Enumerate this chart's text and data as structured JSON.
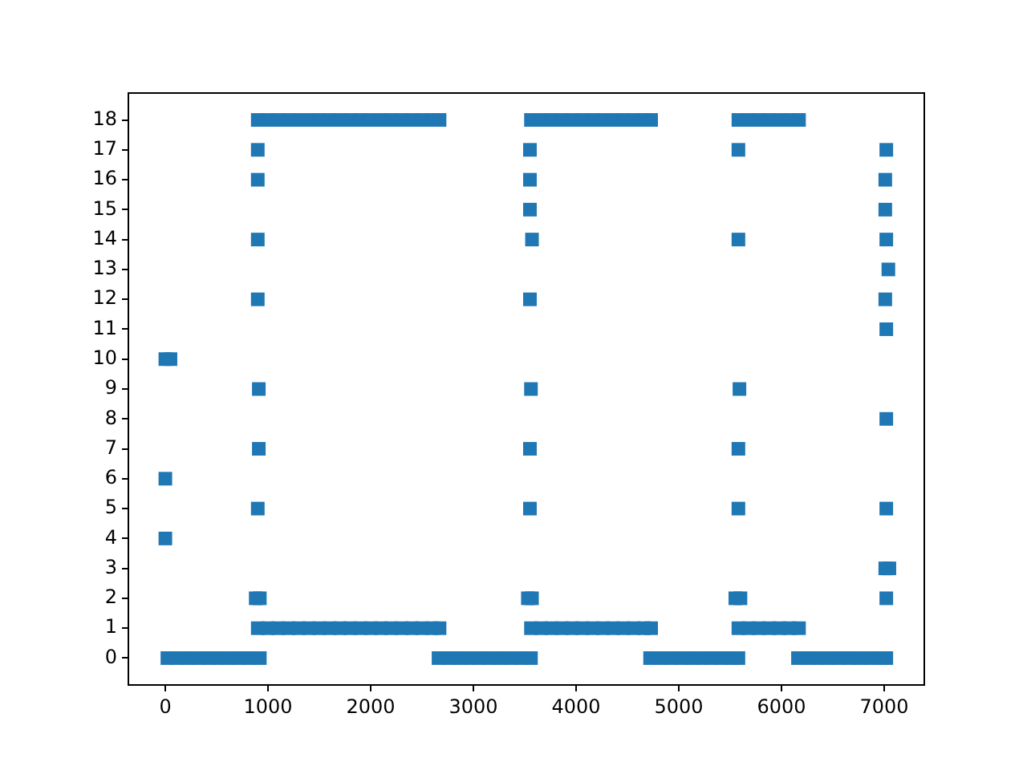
{
  "chart_data": {
    "type": "scatter",
    "color": "#1f77b4",
    "marker": "square",
    "grid": false,
    "x": [
      20,
      120,
      220,
      320,
      420,
      520,
      620,
      720,
      820,
      920,
      2660,
      2760,
      2860,
      2960,
      3060,
      3160,
      3260,
      3360,
      3460,
      3560,
      4720,
      4820,
      4920,
      5020,
      5120,
      5220,
      5320,
      5420,
      5520,
      5580,
      6160,
      6260,
      6360,
      6460,
      6560,
      6660,
      6760,
      6860,
      6960,
      7020,
      900,
      1000,
      1100,
      1200,
      1300,
      1400,
      1500,
      1600,
      1700,
      1800,
      1900,
      2000,
      2100,
      2200,
      2300,
      2400,
      2500,
      2600,
      2670,
      3560,
      3660,
      3760,
      3860,
      3960,
      4060,
      4160,
      4260,
      4360,
      4460,
      4560,
      4660,
      4730,
      5580,
      5680,
      5780,
      5880,
      5980,
      6080,
      6170,
      900,
      1000,
      1100,
      1200,
      1300,
      1400,
      1500,
      1600,
      1700,
      1800,
      1900,
      2000,
      2100,
      2200,
      2300,
      2400,
      2500,
      2600,
      2670,
      3560,
      3660,
      3760,
      3860,
      3960,
      4060,
      4160,
      4260,
      4360,
      4460,
      4560,
      4660,
      4730,
      5580,
      5680,
      5780,
      5880,
      5980,
      6080,
      6170,
      0,
      0,
      0,
      50,
      880,
      920,
      900,
      910,
      910,
      900,
      900,
      900,
      900,
      3530,
      3570,
      3550,
      3550,
      3560,
      3550,
      3570,
      3550,
      3550,
      3550,
      5550,
      5600,
      5580,
      5580,
      5590,
      5580,
      5580,
      7020,
      7010,
      7050,
      7020,
      7020,
      7020,
      7010,
      7040,
      7020,
      7010,
      7010,
      7020
    ],
    "values": [
      0,
      0,
      0,
      0,
      0,
      0,
      0,
      0,
      0,
      0,
      0,
      0,
      0,
      0,
      0,
      0,
      0,
      0,
      0,
      0,
      0,
      0,
      0,
      0,
      0,
      0,
      0,
      0,
      0,
      0,
      0,
      0,
      0,
      0,
      0,
      0,
      0,
      0,
      0,
      0,
      1,
      1,
      1,
      1,
      1,
      1,
      1,
      1,
      1,
      1,
      1,
      1,
      1,
      1,
      1,
      1,
      1,
      1,
      1,
      1,
      1,
      1,
      1,
      1,
      1,
      1,
      1,
      1,
      1,
      1,
      1,
      1,
      1,
      1,
      1,
      1,
      1,
      1,
      1,
      18,
      18,
      18,
      18,
      18,
      18,
      18,
      18,
      18,
      18,
      18,
      18,
      18,
      18,
      18,
      18,
      18,
      18,
      18,
      18,
      18,
      18,
      18,
      18,
      18,
      18,
      18,
      18,
      18,
      18,
      18,
      18,
      18,
      18,
      18,
      18,
      18,
      18,
      18,
      4,
      6,
      10,
      10,
      2,
      2,
      5,
      7,
      9,
      12,
      14,
      16,
      17,
      2,
      2,
      5,
      7,
      9,
      12,
      14,
      15,
      16,
      17,
      2,
      2,
      5,
      7,
      9,
      14,
      17,
      2,
      3,
      3,
      5,
      8,
      11,
      12,
      13,
      14,
      15,
      16,
      17
    ],
    "xlim": [
      -360,
      7390
    ],
    "xticks": [
      0,
      1000,
      2000,
      3000,
      4000,
      5000,
      6000,
      7000
    ],
    "ylim": [
      -0.9,
      18.9
    ],
    "yticks": [
      0,
      1,
      2,
      3,
      4,
      5,
      6,
      7,
      8,
      9,
      10,
      11,
      12,
      13,
      14,
      15,
      16,
      17,
      18
    ]
  }
}
